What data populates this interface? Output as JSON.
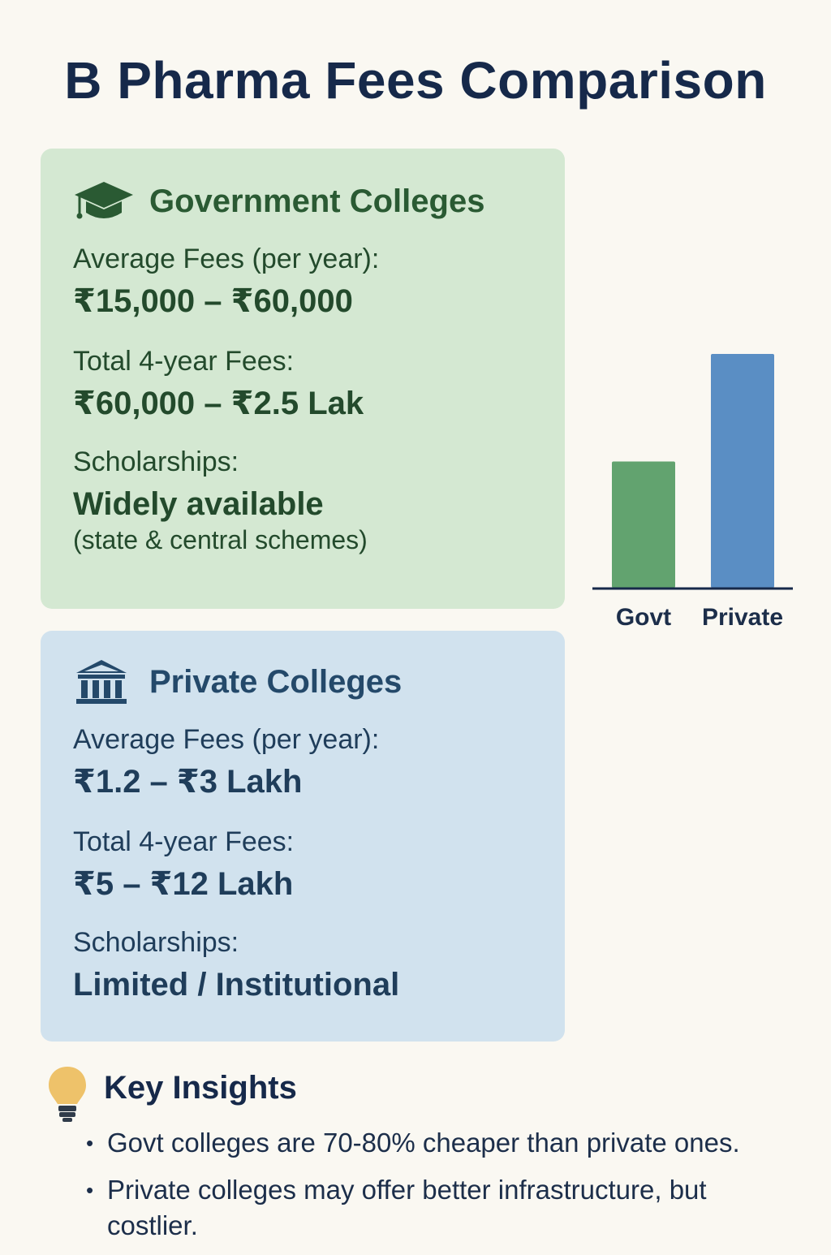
{
  "title": "B Pharma Fees Comparison",
  "government": {
    "title": "Government Colleges",
    "icon": "graduation-cap-icon",
    "avg_label": "Average Fees (per year):",
    "avg_value": "₹15,000 – ₹60,000",
    "total_label": "Total 4-year Fees:",
    "total_value": "₹60,000 – ₹2.5 Lak",
    "scholarship_label": "Scholarships:",
    "scholarship_value": "Widely available",
    "scholarship_note": "(state & central schemes)",
    "color": "#d4e8d2"
  },
  "private": {
    "title": "Private Colleges",
    "icon": "institution-building-icon",
    "avg_label": "Average Fees (per year):",
    "avg_value": "₹1.2 – ₹3 Lakh",
    "total_label": "Total 4-year Fees:",
    "total_value": "₹5 – ₹12 Lakh",
    "scholarship_label": "Scholarships:",
    "scholarship_value": "Limited / Institutional",
    "color": "#d1e2ee"
  },
  "chart_data": {
    "type": "bar",
    "categories": [
      "Govt",
      "Private"
    ],
    "values": [
      0.54,
      1.0
    ],
    "colors": [
      "#62a36f",
      "#5a8ec4"
    ],
    "title": "",
    "xlabel": "",
    "ylabel": "",
    "grid": false,
    "ylim": [
      0,
      1.0
    ]
  },
  "insights": {
    "title": "Key Insights",
    "icon": "lightbulb-icon",
    "items": [
      "Govt colleges are 70-80% cheaper than private ones.",
      "Private colleges may offer better infrastructure, but costlier."
    ]
  }
}
